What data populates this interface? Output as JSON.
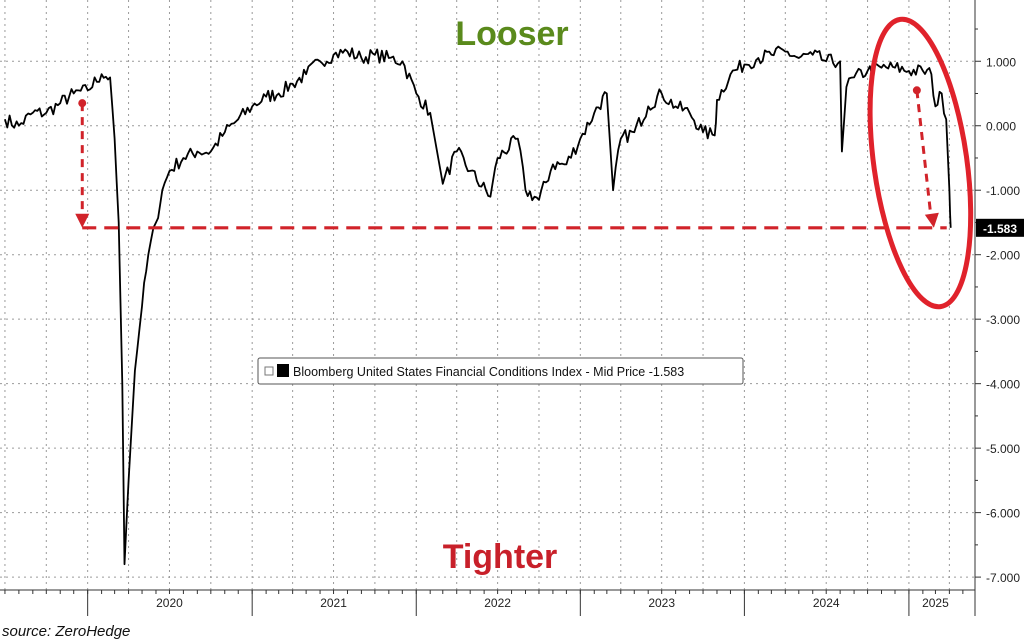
{
  "chart_data": {
    "type": "line",
    "title": "",
    "xlabel": "",
    "ylabel": "",
    "ylim": [
      -7.2,
      1.95
    ],
    "yticks": [
      1.0,
      0.0,
      -1.0,
      -2.0,
      -3.0,
      -4.0,
      -5.0,
      -6.0,
      -7.0
    ],
    "ytick_labels": [
      "1.000",
      "0.000",
      "-1.000",
      "-2.000",
      "-3.000",
      "-4.000",
      "-5.000",
      "-6.000",
      "-7.000"
    ],
    "year_labels": [
      "2020",
      "2021",
      "2022",
      "2023",
      "2024",
      "2025"
    ],
    "grid": true,
    "legend": {
      "placement": "center",
      "text": "Bloomberg United States Financial Conditions Index - Mid Price -1.583"
    },
    "last_value_label": "-1.583",
    "series": [
      {
        "x": [
          "2019-07-01",
          "2019-08-01",
          "2019-09-01",
          "2019-10-01",
          "2019-11-01",
          "2019-12-01",
          "2020-01-01",
          "2020-02-01",
          "2020-02-20",
          "2020-03-01",
          "2020-03-10",
          "2020-03-18",
          "2020-03-23",
          "2020-04-01",
          "2020-04-15",
          "2020-05-01",
          "2020-05-15",
          "2020-06-01",
          "2020-06-15",
          "2020-07-01",
          "2020-08-01",
          "2020-09-01",
          "2020-10-01",
          "2020-11-01",
          "2020-12-01",
          "2021-01-01",
          "2021-02-01",
          "2021-03-01",
          "2021-04-01",
          "2021-05-01",
          "2021-06-01",
          "2021-07-01",
          "2021-08-01",
          "2021-09-01",
          "2021-10-01",
          "2021-11-01",
          "2021-12-01",
          "2022-01-01",
          "2022-02-01",
          "2022-03-01",
          "2022-04-01",
          "2022-05-01",
          "2022-06-15",
          "2022-07-01",
          "2022-08-15",
          "2022-09-01",
          "2022-10-01",
          "2022-11-01",
          "2022-12-01",
          "2023-01-01",
          "2023-02-01",
          "2023-03-01",
          "2023-03-15",
          "2023-04-01",
          "2023-05-01",
          "2023-06-01",
          "2023-07-01",
          "2023-08-01",
          "2023-09-01",
          "2023-10-01",
          "2023-10-27",
          "2023-11-01",
          "2023-12-01",
          "2024-01-01",
          "2024-02-01",
          "2024-03-01",
          "2024-04-01",
          "2024-05-01",
          "2024-06-01",
          "2024-07-01",
          "2024-08-01",
          "2024-08-05",
          "2024-08-15",
          "2024-09-01",
          "2024-10-01",
          "2024-11-01",
          "2024-12-01",
          "2025-01-01",
          "2025-02-01",
          "2025-02-20",
          "2025-03-01",
          "2025-03-15",
          "2025-03-25",
          "2025-04-01",
          "2025-04-04"
        ],
        "values": [
          0.1,
          0.0,
          0.2,
          0.2,
          0.35,
          0.5,
          0.55,
          0.8,
          0.75,
          -0.2,
          -1.5,
          -4.0,
          -6.8,
          -5.5,
          -3.8,
          -2.8,
          -2.0,
          -1.5,
          -1.0,
          -0.7,
          -0.5,
          -0.4,
          -0.4,
          -0.1,
          0.1,
          0.3,
          0.45,
          0.5,
          0.65,
          0.8,
          1.0,
          1.1,
          1.15,
          1.05,
          1.1,
          1.05,
          1.0,
          0.5,
          0.2,
          -0.9,
          -0.4,
          -0.7,
          -1.1,
          -0.5,
          -0.2,
          -1.0,
          -1.15,
          -0.6,
          -0.6,
          -0.2,
          0.2,
          0.5,
          -1.0,
          -0.2,
          -0.1,
          0.3,
          0.5,
          0.3,
          0.2,
          -0.1,
          -0.15,
          0.4,
          0.8,
          0.95,
          1.05,
          1.1,
          1.15,
          1.05,
          1.1,
          1.0,
          1.0,
          -0.4,
          0.6,
          0.75,
          0.85,
          0.9,
          0.9,
          0.85,
          0.85,
          0.8,
          0.3,
          0.5,
          0.1,
          -1.0,
          -1.583
        ]
      }
    ],
    "annotations": {
      "top_label": "Looser",
      "bottom_label": "Tighter",
      "top_label_color": "#5a8a1c",
      "bottom_label_color": "#c8202a",
      "marker_color": "#d1232a",
      "reference_level": -1.583,
      "reference_start": "2019-12-20",
      "arrow_left": {
        "x": "2019-12-20",
        "from": 0.35,
        "to": -1.583
      },
      "arrow_right": {
        "x": "2025-02-01",
        "from": 0.55,
        "to": -1.583
      },
      "ellipse_range": [
        "2024-10-15",
        "2025-05-10"
      ]
    }
  },
  "source_text": "source: ZeroHedge"
}
